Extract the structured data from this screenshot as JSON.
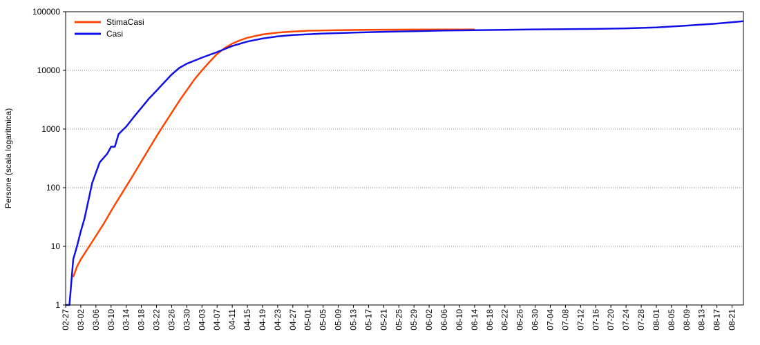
{
  "chart_data": {
    "type": "line",
    "title": "",
    "xlabel": "",
    "ylabel": "Persone (scala logaritmica)",
    "y_scale": "log",
    "ylim": [
      1,
      100000
    ],
    "xlim": [
      "02-27",
      "08-24"
    ],
    "grid": {
      "horizontal": true,
      "vertical": false
    },
    "legend_position": "top-left",
    "y_ticks": [
      "1",
      "10",
      "100",
      "1000",
      "10000",
      "100000"
    ],
    "x_ticks": [
      "02-27",
      "03-02",
      "03-06",
      "03-10",
      "03-14",
      "03-18",
      "03-22",
      "03-26",
      "03-30",
      "04-03",
      "04-07",
      "04-11",
      "04-15",
      "04-19",
      "04-23",
      "04-27",
      "05-01",
      "05-05",
      "05-09",
      "05-13",
      "05-17",
      "05-21",
      "05-25",
      "05-29",
      "06-02",
      "06-06",
      "06-10",
      "06-14",
      "06-18",
      "06-22",
      "06-26",
      "06-30",
      "07-04",
      "07-08",
      "07-12",
      "07-16",
      "07-20",
      "07-24",
      "07-28",
      "08-01",
      "08-05",
      "08-09",
      "08-13",
      "08-17",
      "08-21"
    ],
    "series": [
      {
        "name": "StimaCasi",
        "color": "#ff4500",
        "points": [
          [
            "02-29",
            3
          ],
          [
            "03-01",
            4.5
          ],
          [
            "03-02",
            6
          ],
          [
            "03-04",
            9.5
          ],
          [
            "03-06",
            15
          ],
          [
            "03-08",
            24
          ],
          [
            "03-10",
            40
          ],
          [
            "03-12",
            65
          ],
          [
            "03-14",
            105
          ],
          [
            "03-16",
            170
          ],
          [
            "03-18",
            280
          ],
          [
            "03-20",
            460
          ],
          [
            "03-22",
            750
          ],
          [
            "03-24",
            1200
          ],
          [
            "03-26",
            1900
          ],
          [
            "03-28",
            3000
          ],
          [
            "03-30",
            4600
          ],
          [
            "04-01",
            7000
          ],
          [
            "04-03",
            10000
          ],
          [
            "04-05",
            14000
          ],
          [
            "04-07",
            19000
          ],
          [
            "04-09",
            24000
          ],
          [
            "04-11",
            28500
          ],
          [
            "04-13",
            32500
          ],
          [
            "04-15",
            36000
          ],
          [
            "04-19",
            41000
          ],
          [
            "04-23",
            44000
          ],
          [
            "04-27",
            46000
          ],
          [
            "05-01",
            47500
          ],
          [
            "05-09",
            48500
          ],
          [
            "05-17",
            49200
          ],
          [
            "05-29",
            49600
          ],
          [
            "06-10",
            49800
          ],
          [
            "06-14",
            49900
          ]
        ]
      },
      {
        "name": "Casi",
        "color": "#1010e6",
        "points": [
          [
            "02-27",
            1
          ],
          [
            "02-28",
            1
          ],
          [
            "02-29",
            6
          ],
          [
            "03-01",
            10
          ],
          [
            "03-02",
            18
          ],
          [
            "03-03",
            30
          ],
          [
            "03-04",
            60
          ],
          [
            "03-05",
            120
          ],
          [
            "03-06",
            180
          ],
          [
            "03-07",
            270
          ],
          [
            "03-09",
            380
          ],
          [
            "03-10",
            500
          ],
          [
            "03-11",
            500
          ],
          [
            "03-12",
            820
          ],
          [
            "03-14",
            1100
          ],
          [
            "03-16",
            1600
          ],
          [
            "03-18",
            2300
          ],
          [
            "03-20",
            3300
          ],
          [
            "03-22",
            4500
          ],
          [
            "03-24",
            6200
          ],
          [
            "03-26",
            8500
          ],
          [
            "03-28",
            11000
          ],
          [
            "03-30",
            13000
          ],
          [
            "04-03",
            16500
          ],
          [
            "04-07",
            20500
          ],
          [
            "04-11",
            26000
          ],
          [
            "04-15",
            31000
          ],
          [
            "04-19",
            35000
          ],
          [
            "04-23",
            38000
          ],
          [
            "04-27",
            40000
          ],
          [
            "05-05",
            42500
          ],
          [
            "05-13",
            44000
          ],
          [
            "05-21",
            45500
          ],
          [
            "05-29",
            46500
          ],
          [
            "06-06",
            47800
          ],
          [
            "06-14",
            48500
          ],
          [
            "06-22",
            49200
          ],
          [
            "06-30",
            50000
          ],
          [
            "07-08",
            50500
          ],
          [
            "07-16",
            51000
          ],
          [
            "07-24",
            52000
          ],
          [
            "08-01",
            54000
          ],
          [
            "08-09",
            58000
          ],
          [
            "08-17",
            63000
          ],
          [
            "08-24",
            69000
          ]
        ]
      }
    ]
  }
}
